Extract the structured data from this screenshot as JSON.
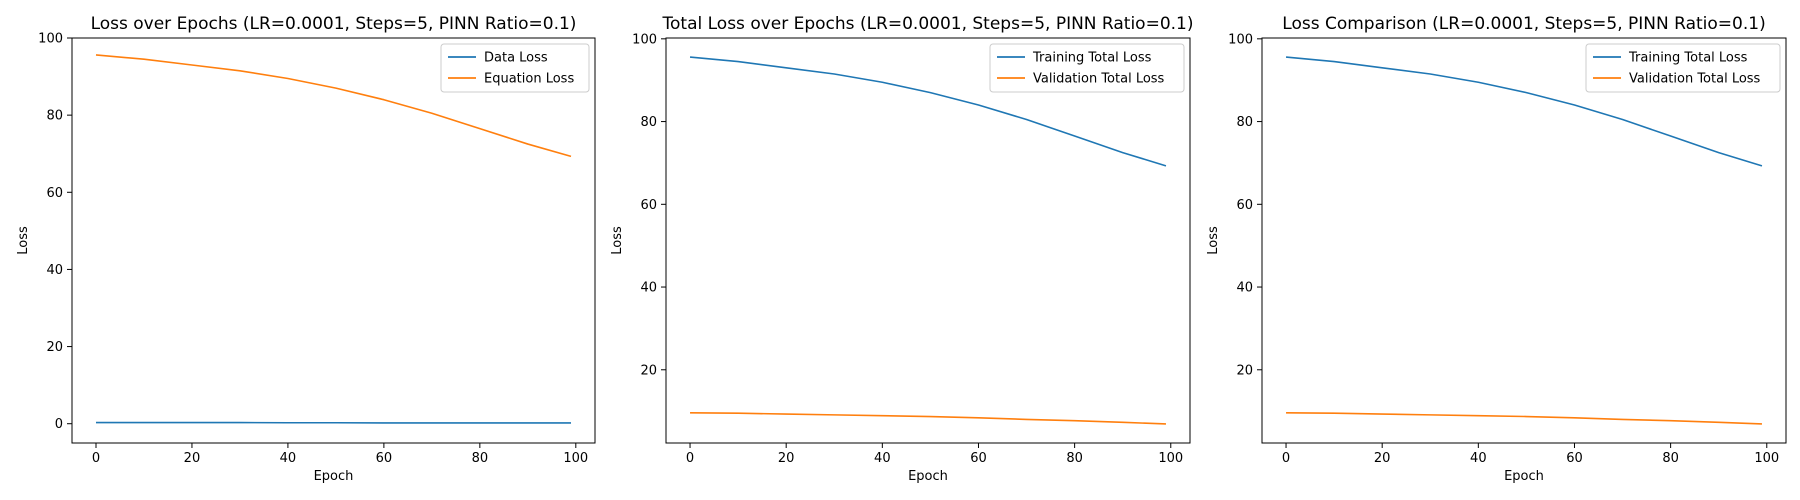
{
  "chart_data": [
    {
      "type": "line",
      "title": "Loss over Epochs (LR=0.0001, Steps=5, PINN Ratio=0.1)",
      "xlabel": "Epoch",
      "ylabel": "Loss",
      "xlim": [
        -5,
        104
      ],
      "ylim": [
        -5,
        100
      ],
      "xticks": [
        0,
        20,
        40,
        60,
        80,
        100
      ],
      "yticks": [
        0,
        20,
        40,
        60,
        80,
        100
      ],
      "grid": false,
      "legend_position": "upper right",
      "series": [
        {
          "name": "Data Loss",
          "color": "#1f77b4",
          "x": [
            0,
            10,
            20,
            30,
            40,
            50,
            60,
            70,
            80,
            90,
            99
          ],
          "y": [
            0.3,
            0.3,
            0.3,
            0.3,
            0.25,
            0.25,
            0.2,
            0.2,
            0.2,
            0.2,
            0.2
          ]
        },
        {
          "name": "Equation Loss",
          "color": "#ff7f0e",
          "x": [
            0,
            10,
            20,
            30,
            40,
            50,
            60,
            70,
            80,
            90,
            99
          ],
          "y": [
            95.6,
            94.5,
            93.0,
            91.5,
            89.5,
            87.0,
            84.0,
            80.5,
            76.5,
            72.5,
            69.3
          ]
        }
      ]
    },
    {
      "type": "line",
      "title": "Total Loss over Epochs (LR=0.0001, Steps=5, PINN Ratio=0.1)",
      "xlabel": "Epoch",
      "ylabel": "Loss",
      "xlim": [
        -5,
        104
      ],
      "ylim": [
        2.3,
        100.2
      ],
      "xticks": [
        0,
        20,
        40,
        60,
        80,
        100
      ],
      "yticks": [
        20,
        40,
        60,
        80,
        100
      ],
      "grid": false,
      "legend_position": "upper right",
      "series": [
        {
          "name": "Training Total Loss",
          "color": "#1f77b4",
          "x": [
            0,
            10,
            20,
            30,
            40,
            50,
            60,
            70,
            80,
            90,
            99
          ],
          "y": [
            95.6,
            94.5,
            93.0,
            91.5,
            89.5,
            87.0,
            84.0,
            80.5,
            76.5,
            72.5,
            69.3
          ]
        },
        {
          "name": "Validation Total Loss",
          "color": "#ff7f0e",
          "x": [
            0,
            10,
            20,
            30,
            40,
            50,
            60,
            70,
            80,
            90,
            99
          ],
          "y": [
            9.6,
            9.5,
            9.3,
            9.1,
            8.9,
            8.7,
            8.4,
            8.0,
            7.7,
            7.3,
            6.9
          ]
        }
      ]
    },
    {
      "type": "line",
      "title": "Loss Comparison (LR=0.0001, Steps=5, PINN Ratio=0.1)",
      "xlabel": "Epoch",
      "ylabel": "Loss",
      "xlim": [
        -5,
        104
      ],
      "ylim": [
        2.3,
        100.2
      ],
      "xticks": [
        0,
        20,
        40,
        60,
        80,
        100
      ],
      "yticks": [
        20,
        40,
        60,
        80,
        100
      ],
      "grid": false,
      "legend_position": "upper right",
      "series": [
        {
          "name": "Training Total Loss",
          "color": "#1f77b4",
          "x": [
            0,
            10,
            20,
            30,
            40,
            50,
            60,
            70,
            80,
            90,
            99
          ],
          "y": [
            95.6,
            94.5,
            93.0,
            91.5,
            89.5,
            87.0,
            84.0,
            80.5,
            76.5,
            72.5,
            69.3
          ]
        },
        {
          "name": "Validation Total Loss",
          "color": "#ff7f0e",
          "x": [
            0,
            10,
            20,
            30,
            40,
            50,
            60,
            70,
            80,
            90,
            99
          ],
          "y": [
            9.6,
            9.5,
            9.3,
            9.1,
            8.9,
            8.7,
            8.4,
            8.0,
            7.7,
            7.3,
            6.9
          ]
        }
      ]
    }
  ]
}
